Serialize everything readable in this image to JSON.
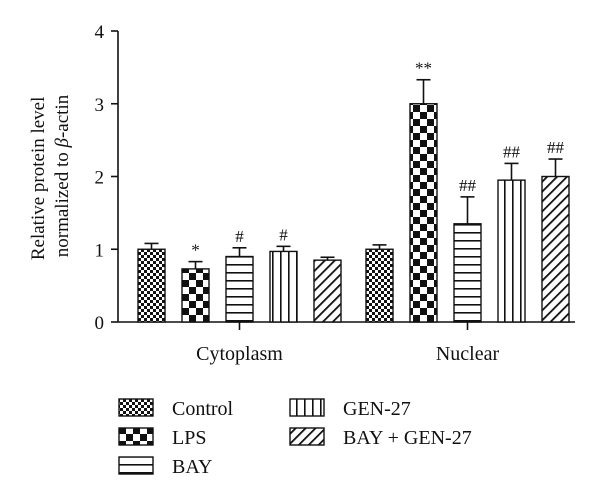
{
  "chart_data": {
    "type": "bar",
    "categories": [
      "Cytoplasm",
      "Nuclear"
    ],
    "ylabel_line1": "Relative protein level",
    "ylabel_line2_prefix": "normalized to ",
    "ylabel_beta": "β",
    "ylabel_line2_suffix": "-actin",
    "ylim": [
      0,
      4
    ],
    "yticks": [
      "0",
      "1",
      "2",
      "3",
      "4"
    ],
    "series": [
      {
        "name": "Control",
        "pattern": "check-small",
        "values": [
          1.0,
          1.0
        ],
        "errors": [
          0.08,
          0.06
        ],
        "annotations": [
          "",
          ""
        ]
      },
      {
        "name": "LPS",
        "pattern": "check-large",
        "values": [
          0.73,
          3.0
        ],
        "errors": [
          0.1,
          0.33
        ],
        "annotations": [
          "*",
          "**"
        ]
      },
      {
        "name": "BAY",
        "pattern": "horizontal",
        "values": [
          0.9,
          1.35
        ],
        "errors": [
          0.12,
          0.37
        ],
        "annotations": [
          "#",
          "##"
        ]
      },
      {
        "name": "GEN-27",
        "pattern": "vertical",
        "values": [
          0.97,
          1.95
        ],
        "errors": [
          0.07,
          0.23
        ],
        "annotations": [
          "#",
          "##"
        ]
      },
      {
        "name": "BAY + GEN-27",
        "pattern": "diagonal",
        "values": [
          0.85,
          2.0
        ],
        "errors": [
          0.04,
          0.24
        ],
        "annotations": [
          "",
          "##"
        ]
      }
    ],
    "grid": false,
    "legend_position": "bottom"
  }
}
